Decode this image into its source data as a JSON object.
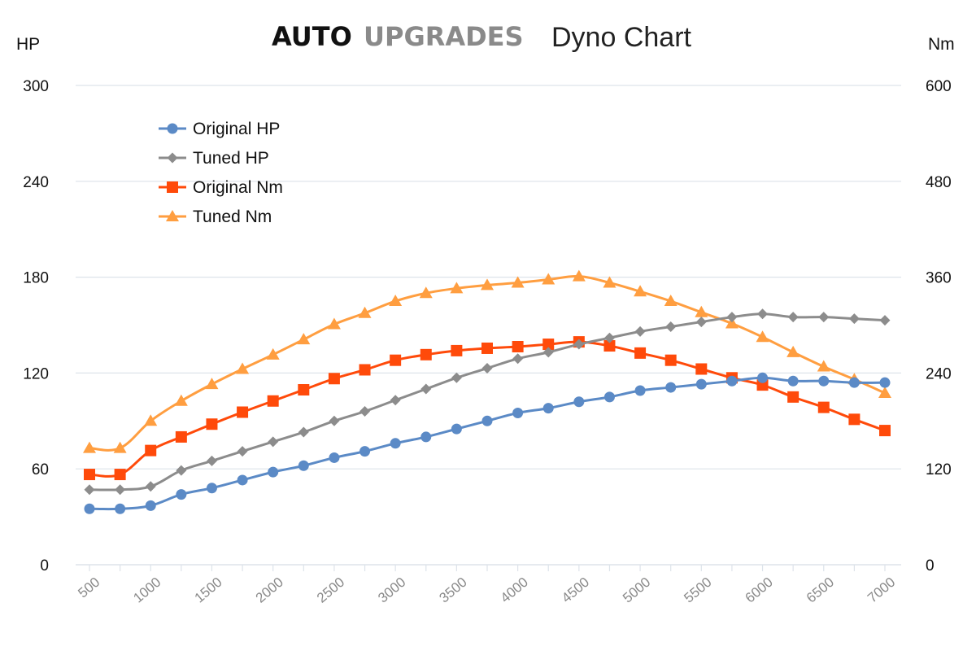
{
  "header": {
    "brand_primary": "AUTO",
    "brand_secondary": "UPGRADES",
    "title": "Dyno Chart"
  },
  "axes": {
    "left_unit": "HP",
    "right_unit": "Nm"
  },
  "colors": {
    "original_hp": "#5b8ac6",
    "tuned_hp": "#8c8c8c",
    "original_nm": "#ff4a0a",
    "tuned_nm": "#ff9e40",
    "grid": "#dde3ea",
    "x_tick_text": "#8a8a8a"
  },
  "chart_data": {
    "type": "line",
    "title": "Dyno Chart",
    "x": [
      500,
      750,
      1000,
      1250,
      1500,
      1750,
      2000,
      2250,
      2500,
      2750,
      3000,
      3250,
      3500,
      3750,
      4000,
      4250,
      4500,
      4750,
      5000,
      5250,
      5500,
      5750,
      6000,
      6250,
      6500,
      6750,
      7000
    ],
    "x_tick_labels": [
      "500",
      "1000",
      "1500",
      "2000",
      "2500",
      "3000",
      "3500",
      "4000",
      "4500",
      "5000",
      "5500",
      "6000",
      "6500",
      "7000"
    ],
    "xlim": [
      500,
      7000
    ],
    "y_left": {
      "label": "HP",
      "ylim": [
        0,
        300
      ],
      "ticks": [
        "0",
        "60",
        "120",
        "180",
        "240",
        "300"
      ]
    },
    "y_right": {
      "label": "Nm",
      "ylim": [
        0,
        600
      ],
      "ticks": [
        "0",
        "120",
        "240",
        "360",
        "480",
        "600"
      ]
    },
    "grid": true,
    "legend_position": "top-left",
    "series": [
      {
        "name": "Original HP",
        "axis": "left",
        "marker": "circle",
        "color": "#5b8ac6",
        "values": [
          35,
          35,
          37,
          44,
          48,
          53,
          58,
          62,
          67,
          71,
          76,
          80,
          85,
          90,
          95,
          98,
          102,
          105,
          109,
          111,
          113,
          115,
          117,
          115,
          115,
          114,
          114
        ]
      },
      {
        "name": "Tuned HP",
        "axis": "left",
        "marker": "diamond",
        "color": "#8c8c8c",
        "values": [
          47,
          47,
          49,
          59,
          65,
          71,
          77,
          83,
          90,
          96,
          103,
          110,
          117,
          123,
          129,
          133,
          138,
          142,
          146,
          149,
          152,
          155,
          157,
          155,
          155,
          154,
          153
        ]
      },
      {
        "name": "Original Nm",
        "axis": "right",
        "marker": "square",
        "color": "#ff4a0a",
        "values": [
          113,
          113,
          143,
          160,
          176,
          191,
          205,
          219,
          233,
          244,
          256,
          263,
          268,
          271,
          273,
          276,
          279,
          274,
          265,
          256,
          245,
          234,
          225,
          210,
          197,
          182,
          168
        ]
      },
      {
        "name": "Tuned Nm",
        "axis": "right",
        "marker": "triangle",
        "color": "#ff9e40",
        "values": [
          146,
          146,
          180,
          205,
          226,
          245,
          263,
          282,
          301,
          315,
          330,
          340,
          346,
          350,
          353,
          357,
          361,
          353,
          342,
          330,
          316,
          302,
          285,
          266,
          248,
          232,
          215
        ]
      }
    ]
  }
}
